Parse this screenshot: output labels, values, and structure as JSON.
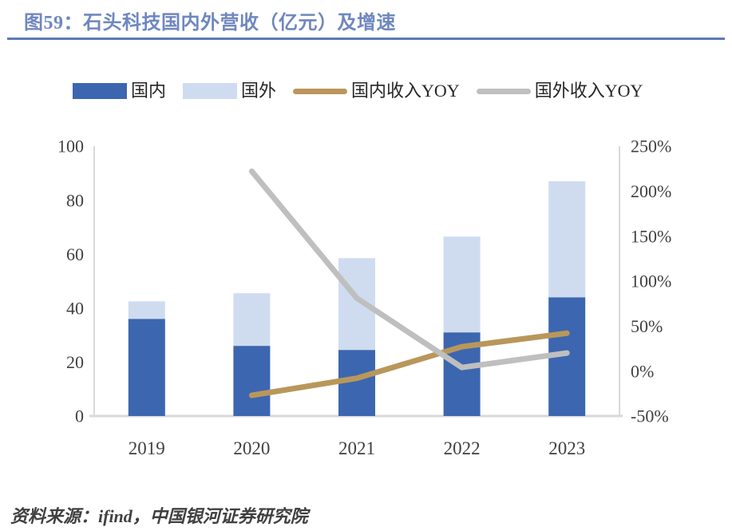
{
  "title": "图59：石头科技国内外营收（亿元）及增速",
  "source_note": "资料来源：ifind，中国银河证券研究院",
  "colors": {
    "title_blue": "#6F87BF",
    "rule_blue": "#5C7AB6",
    "domestic_bar": "#3C66AF",
    "overseas_bar": "#CFDCF0",
    "domestic_yoy_line": "#B9975B",
    "overseas_yoy_line": "#BFBFBF",
    "axis_line": "#D9D9D9",
    "tick_text": "#404040"
  },
  "legend": {
    "items": [
      {
        "key": "domestic",
        "label": "国内",
        "swatch": "box",
        "color": "#3C66AF"
      },
      {
        "key": "overseas",
        "label": "国外",
        "swatch": "box",
        "color": "#CFDCF0"
      },
      {
        "key": "domestic-yoy",
        "label": "国内收入YOY",
        "swatch": "line",
        "color": "#B9975B"
      },
      {
        "key": "overseas-yoy",
        "label": "国外收入YOY",
        "swatch": "line",
        "color": "#BFBFBF"
      }
    ]
  },
  "chart_data": {
    "type": "bar",
    "subtype": "stacked-bar-with-lines",
    "title": "石头科技国内外营收（亿元）及增速",
    "categories": [
      "2019",
      "2020",
      "2021",
      "2022",
      "2023"
    ],
    "bar_series": [
      {
        "key": "domestic",
        "name": "国内",
        "color": "#3C66AF",
        "axis": "left",
        "values": [
          36,
          26,
          24.5,
          31,
          44
        ]
      },
      {
        "key": "overseas",
        "name": "国外",
        "color": "#CFDCF0",
        "axis": "left",
        "values": [
          6.5,
          19.5,
          34,
          35.5,
          43
        ]
      }
    ],
    "line_series": [
      {
        "key": "domestic-yoy",
        "name": "国内收入YOY",
        "color": "#B9975B",
        "axis": "right",
        "values": [
          null,
          -27,
          -8,
          27,
          42
        ]
      },
      {
        "key": "overseas-yoy",
        "name": "国外收入YOY",
        "color": "#BFBFBF",
        "axis": "right",
        "values": [
          null,
          222,
          81,
          4,
          20
        ]
      }
    ],
    "left_axis": {
      "min": 0,
      "max": 100,
      "tick_values": [
        0,
        20,
        40,
        60,
        80,
        100
      ],
      "tick_labels": [
        "0",
        "20",
        "40",
        "60",
        "80",
        "100"
      ]
    },
    "right_axis": {
      "min": -50,
      "max": 250,
      "tick_values": [
        -50,
        0,
        50,
        100,
        150,
        200,
        250
      ],
      "tick_labels": [
        "-50%",
        "0%",
        "50%",
        "100%",
        "150%",
        "200%",
        "250%"
      ]
    },
    "grid": false,
    "legend_position": "top"
  }
}
